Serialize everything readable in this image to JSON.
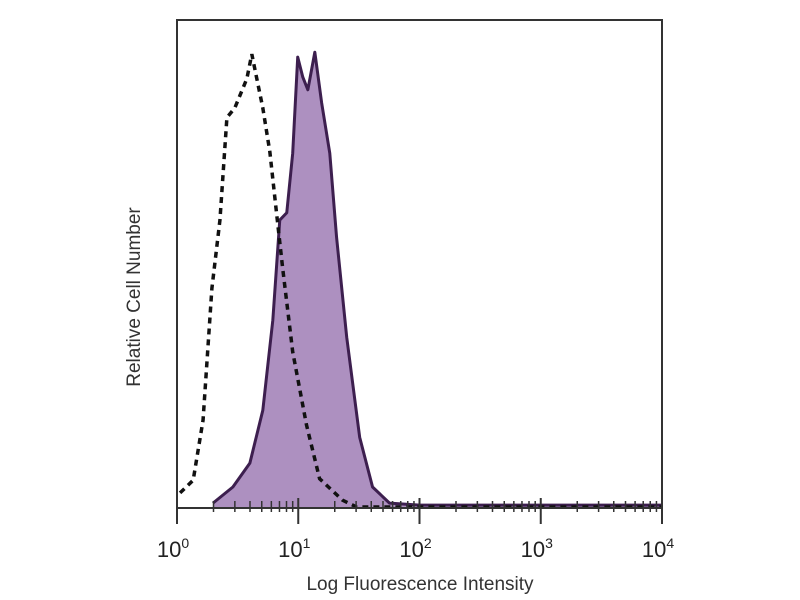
{
  "chart_data": {
    "type": "area",
    "title": "",
    "xlabel": "Log Fluorescence Intensity",
    "ylabel": "Relative Cell Number",
    "xscale": "log",
    "xlim": [
      1,
      10000
    ],
    "ylim": [
      0,
      100
    ],
    "grid": false,
    "legend": "none",
    "x_tick_labels": [
      {
        "base": "10",
        "exp": "0",
        "value": 1
      },
      {
        "base": "10",
        "exp": "1",
        "value": 10
      },
      {
        "base": "10",
        "exp": "2",
        "value": 100
      },
      {
        "base": "10",
        "exp": "3",
        "value": 1000
      },
      {
        "base": "10",
        "exp": "4",
        "value": 10000
      }
    ],
    "series": [
      {
        "style": "dashed line, no fill",
        "color": "#111111",
        "x": [
          1.06,
          1.36,
          1.64,
          1.94,
          2.26,
          2.58,
          3.0,
          3.77,
          4.14,
          4.55,
          5.1,
          5.83,
          6.65,
          7.45,
          9.0,
          11.7,
          15.0,
          23.2,
          30.3,
          100,
          1000,
          10000
        ],
        "y": [
          3.1,
          5.7,
          18,
          45,
          59,
          80,
          82,
          88,
          93,
          88,
          82,
          73,
          60,
          49,
          32,
          17,
          6,
          1.6,
          0.2,
          0.2,
          0.2,
          0.2
        ]
      },
      {
        "style": "solid line, filled",
        "color": "#3d1f4f",
        "fill": "#ad90c0",
        "x": [
          1.98,
          2.89,
          3.99,
          5.1,
          6.17,
          7.04,
          8.04,
          9.0,
          9.9,
          10.9,
          12.0,
          13.7,
          15.6,
          18.2,
          20.7,
          25.1,
          32.1,
          41.0,
          56.6,
          100,
          1000,
          10000
        ],
        "y": [
          1,
          4.3,
          9.2,
          20,
          38.5,
          59,
          60.5,
          72.7,
          92.4,
          88.3,
          85.7,
          93.4,
          83,
          72.7,
          55.5,
          35,
          14.5,
          4.3,
          1,
          0.6,
          0.6,
          0.6
        ]
      }
    ]
  }
}
